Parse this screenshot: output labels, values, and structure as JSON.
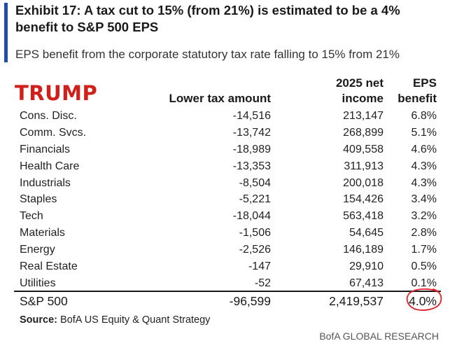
{
  "title": "Exhibit 17: A tax cut to 15% (from 21%) is estimated to be a 4% benefit to S&P 500 EPS",
  "subtitle": "EPS benefit from the corporate statutory tax rate falling to 15% from 21%",
  "annotation": "TRUMP",
  "colors": {
    "accent_bar": "#1f4ea8",
    "annotation_text": "#d0201c",
    "highlight_circle": "#e0202a"
  },
  "chart_data": {
    "type": "table",
    "columns": [
      "",
      "Lower tax amount",
      "2025 net income",
      "EPS benefit"
    ],
    "header_lines": {
      "lower": "Lower tax amount",
      "net_1": "2025 net",
      "net_2": "income",
      "eps_1": "EPS",
      "eps_2": "benefit"
    },
    "rows": [
      {
        "sector": "Cons. Disc.",
        "lower_tax_amount": "-14,516",
        "net_income_2025": "213,147",
        "eps_benefit": "6.8%"
      },
      {
        "sector": "Comm. Svcs.",
        "lower_tax_amount": "-13,742",
        "net_income_2025": "268,899",
        "eps_benefit": "5.1%"
      },
      {
        "sector": "Financials",
        "lower_tax_amount": "-18,989",
        "net_income_2025": "409,558",
        "eps_benefit": "4.6%"
      },
      {
        "sector": "Health Care",
        "lower_tax_amount": "-13,353",
        "net_income_2025": "311,913",
        "eps_benefit": "4.3%"
      },
      {
        "sector": "Industrials",
        "lower_tax_amount": "-8,504",
        "net_income_2025": "200,018",
        "eps_benefit": "4.3%"
      },
      {
        "sector": "Staples",
        "lower_tax_amount": "-5,221",
        "net_income_2025": "154,426",
        "eps_benefit": "3.4%"
      },
      {
        "sector": "Tech",
        "lower_tax_amount": "-18,044",
        "net_income_2025": "563,418",
        "eps_benefit": "3.2%"
      },
      {
        "sector": "Materials",
        "lower_tax_amount": "-1,506",
        "net_income_2025": "54,645",
        "eps_benefit": "2.8%"
      },
      {
        "sector": "Energy",
        "lower_tax_amount": "-2,526",
        "net_income_2025": "146,189",
        "eps_benefit": "1.7%"
      },
      {
        "sector": "Real Estate",
        "lower_tax_amount": "-147",
        "net_income_2025": "29,910",
        "eps_benefit": "0.5%"
      },
      {
        "sector": "Utilities",
        "lower_tax_amount": "-52",
        "net_income_2025": "67,413",
        "eps_benefit": "0.1%"
      }
    ],
    "total": {
      "sector": "S&P 500",
      "lower_tax_amount": "-96,599",
      "net_income_2025": "2,419,537",
      "eps_benefit": "4.0%"
    }
  },
  "source": {
    "label": "Source:",
    "text": " BofA US Equity & Quant Strategy"
  },
  "brand": "BofA GLOBAL RESEARCH"
}
